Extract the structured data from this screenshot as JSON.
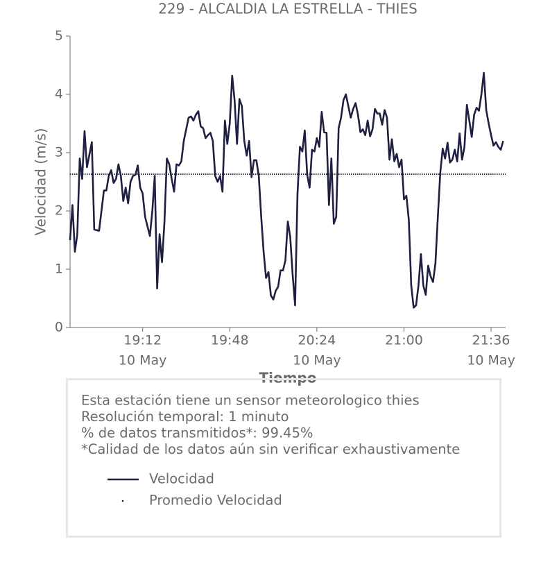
{
  "chart_data": {
    "type": "line",
    "title": "229 - ALCALDIA LA ESTRELLA - THIES",
    "xlabel": "Tiempo",
    "ylabel": "Velocidad (m/s)",
    "x": [
      "18:42",
      "18:43",
      "18:44",
      "18:45",
      "18:46",
      "18:47",
      "18:48",
      "18:49",
      "18:51",
      "18:52",
      "18:54",
      "18:56",
      "18:57",
      "18:58",
      "18:59",
      "19:00",
      "19:01",
      "19:02",
      "19:03",
      "19:04",
      "19:05",
      "19:06",
      "19:07",
      "19:08",
      "19:09",
      "19:10",
      "19:11",
      "19:12",
      "19:13",
      "19:15",
      "19:16",
      "19:17",
      "19:18",
      "19:19",
      "19:20",
      "19:21",
      "19:22",
      "19:23",
      "19:24",
      "19:25",
      "19:26",
      "19:27",
      "19:28",
      "19:29",
      "19:31",
      "19:32",
      "19:33",
      "19:34",
      "19:35",
      "19:36",
      "19:37",
      "19:38",
      "19:39",
      "19:40",
      "19:41",
      "19:42",
      "19:43",
      "19:44",
      "19:45",
      "19:46",
      "19:47",
      "19:48",
      "19:49",
      "19:50",
      "19:51",
      "19:52",
      "19:53",
      "19:54",
      "19:55",
      "19:56",
      "19:57",
      "19:58",
      "19:59",
      "20:00",
      "20:01",
      "20:02",
      "20:03",
      "20:04",
      "20:05",
      "20:06",
      "20:07",
      "20:08",
      "20:09",
      "20:10",
      "20:11",
      "20:12",
      "20:13",
      "20:14",
      "20:15",
      "20:16",
      "20:17",
      "20:18",
      "20:19",
      "20:20",
      "20:21",
      "20:22",
      "20:23",
      "20:24",
      "20:25",
      "20:26",
      "20:27",
      "20:28",
      "20:29",
      "20:30",
      "20:31",
      "20:32",
      "20:33",
      "20:34",
      "20:35",
      "20:36",
      "20:37",
      "20:38",
      "20:39",
      "20:40",
      "20:41",
      "20:42",
      "20:43",
      "20:44",
      "20:45",
      "20:46",
      "20:47",
      "20:48",
      "20:49",
      "20:50",
      "20:51",
      "20:52",
      "20:53",
      "20:54",
      "20:55",
      "20:56",
      "20:57",
      "20:58",
      "20:59",
      "21:00",
      "21:01",
      "21:02",
      "21:03",
      "21:04",
      "21:05",
      "21:06",
      "21:07",
      "21:08",
      "21:09",
      "21:10",
      "21:11",
      "21:12",
      "21:13",
      "21:14",
      "21:15",
      "21:16",
      "21:17",
      "21:18",
      "21:19",
      "21:20",
      "21:21",
      "21:22",
      "21:23",
      "21:24",
      "21:25",
      "21:26",
      "21:27",
      "21:28",
      "21:29",
      "21:30",
      "21:31",
      "21:32",
      "21:33",
      "21:34",
      "21:35",
      "21:36",
      "21:37",
      "21:38",
      "21:39",
      "21:40",
      "21:41"
    ],
    "series": [
      {
        "name": "Velocidad",
        "color": "#1f2041",
        "values": [
          1.5,
          2.1,
          1.3,
          1.6,
          2.9,
          2.55,
          3.37,
          2.75,
          3.18,
          1.68,
          1.66,
          2.35,
          2.35,
          2.6,
          2.7,
          2.48,
          2.55,
          2.8,
          2.6,
          2.17,
          2.4,
          2.13,
          2.5,
          2.6,
          2.62,
          2.78,
          2.4,
          2.3,
          1.9,
          1.57,
          2.0,
          2.6,
          0.67,
          1.6,
          1.12,
          1.8,
          2.9,
          2.8,
          2.55,
          2.33,
          2.8,
          2.78,
          2.85,
          3.2,
          3.6,
          3.62,
          3.55,
          3.65,
          3.71,
          3.45,
          3.42,
          3.25,
          3.3,
          3.34,
          3.2,
          2.6,
          2.5,
          2.6,
          2.33,
          3.55,
          3.15,
          3.5,
          4.32,
          3.9,
          3.15,
          3.92,
          3.8,
          3.2,
          2.95,
          3.2,
          2.58,
          2.87,
          2.87,
          2.6,
          1.9,
          1.3,
          0.85,
          0.95,
          0.55,
          0.48,
          0.63,
          0.7,
          0.98,
          0.98,
          1.15,
          1.82,
          1.55,
          0.9,
          0.38,
          2.3,
          3.1,
          3.02,
          3.38,
          2.62,
          2.4,
          3.05,
          3.02,
          3.25,
          3.1,
          3.7,
          3.35,
          3.34,
          2.1,
          2.9,
          1.78,
          1.9,
          3.42,
          3.6,
          3.9,
          4.0,
          3.8,
          3.6,
          3.75,
          3.85,
          3.65,
          3.35,
          3.4,
          3.3,
          3.55,
          3.28,
          3.4,
          3.75,
          3.67,
          3.67,
          3.48,
          3.73,
          3.6,
          2.88,
          3.23,
          2.85,
          2.98,
          2.75,
          2.88,
          2.2,
          2.26,
          1.85,
          0.72,
          0.34,
          0.38,
          0.72,
          1.26,
          0.72,
          0.56,
          1.06,
          0.88,
          0.78,
          1.1,
          1.9,
          2.65,
          3.07,
          2.9,
          3.17,
          2.83,
          2.88,
          3.05,
          2.85,
          3.33,
          2.88,
          3.1,
          3.82,
          3.55,
          3.27,
          3.65,
          3.77,
          3.72,
          4.0,
          4.37,
          3.73,
          3.5,
          3.3,
          3.12,
          3.18,
          3.1,
          3.05,
          3.2
        ]
      }
    ],
    "reference_lines": [
      {
        "name": "Promedio Velocidad",
        "value": 2.63,
        "color": "#1f2041"
      }
    ],
    "xlim": [
      "18:42",
      "21:42"
    ],
    "xticks": [
      "19:12",
      "19:48",
      "20:24",
      "21:00",
      "21:36"
    ],
    "xtick_dates": [
      "10 May",
      null,
      "10 May",
      null,
      "10 May"
    ],
    "ylim": [
      0,
      5
    ],
    "yticks": [
      0,
      1,
      2,
      3,
      4,
      5
    ],
    "notes": [
      "Esta estación tiene un sensor meteorologico thies",
      "Resolución temporal: 1 minuto",
      "% de datos transmitidos*: 99.45%",
      "*Calidad de los datos aún sin verificar exhaustivamente"
    ]
  }
}
